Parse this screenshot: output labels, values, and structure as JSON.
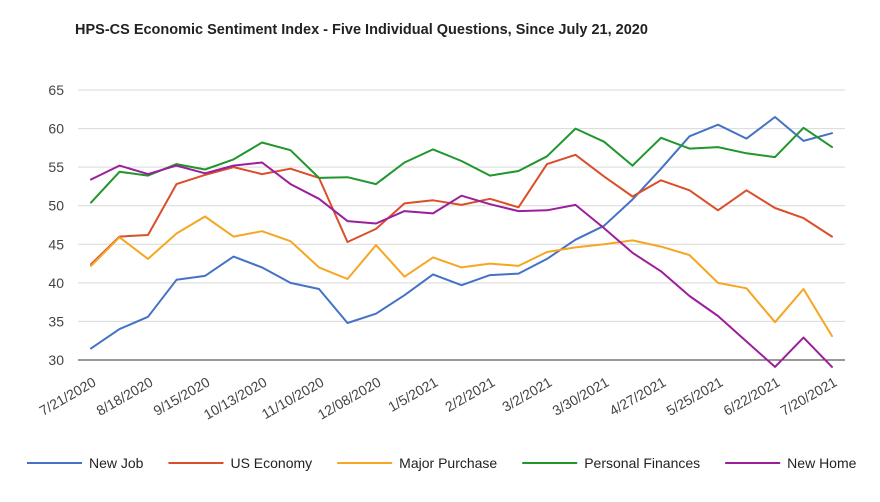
{
  "chart_data": {
    "type": "line",
    "title": "HPS-CS Economic Sentiment Index - Five Individual Questions, Since July 21, 2020",
    "xlabel": "",
    "ylabel": "",
    "ylim": [
      30,
      65
    ],
    "yticks": [
      "30",
      "35",
      "40",
      "45",
      "50",
      "55",
      "60",
      "65"
    ],
    "grid": true,
    "legend": "bottom",
    "categories": [
      "7/21/2020",
      "8/4/2020",
      "8/18/2020",
      "9/1/2020",
      "9/15/2020",
      "9/29/2020",
      "10/13/2020",
      "10/27/2020",
      "11/10/2020",
      "11/24/2020",
      "12/08/2020",
      "12/22/2020",
      "1/5/2021",
      "1/19/2021",
      "2/2/2021",
      "2/16/2021",
      "3/2/2021",
      "3/16/2021",
      "3/30/2021",
      "4/13/2021",
      "4/27/2021",
      "5/11/2021",
      "5/25/2021",
      "6/8/2021",
      "6/22/2021",
      "7/6/2021",
      "7/20/2021"
    ],
    "x_tick_labels": [
      "7/21/2020",
      "8/18/2020",
      "9/15/2020",
      "10/13/2020",
      "11/10/2020",
      "12/08/2020",
      "1/5/2021",
      "2/2/2021",
      "3/2/2021",
      "3/30/2021",
      "4/27/2021",
      "5/25/2021",
      "6/22/2021",
      "7/20/2021"
    ],
    "series": [
      {
        "name": "New Job",
        "color": "#4472C4",
        "values": [
          31.5,
          34.0,
          35.6,
          40.4,
          40.9,
          43.4,
          42.0,
          40.0,
          39.2,
          34.8,
          36.0,
          38.4,
          41.1,
          39.7,
          41.0,
          41.2,
          43.1,
          45.6,
          47.4,
          50.8,
          54.8,
          59.0,
          60.5,
          58.7,
          61.5,
          58.4,
          59.4
        ]
      },
      {
        "name": "US Economy",
        "color": "#DB4E2A",
        "values": [
          42.4,
          46.0,
          46.2,
          52.8,
          54.0,
          55.0,
          54.1,
          54.8,
          53.6,
          45.3,
          47.0,
          50.3,
          50.7,
          50.1,
          50.9,
          49.8,
          55.4,
          56.6,
          53.8,
          51.2,
          53.3,
          52.0,
          49.4,
          52.0,
          49.7,
          48.4,
          46.0
        ]
      },
      {
        "name": "Major Purchase",
        "color": "#F5A623",
        "values": [
          42.2,
          45.9,
          43.1,
          46.4,
          48.6,
          46.0,
          46.7,
          45.4,
          42.0,
          40.5,
          44.9,
          40.8,
          43.3,
          42.0,
          42.5,
          42.2,
          44.0,
          44.6,
          45.0,
          45.5,
          44.7,
          43.6,
          40.0,
          39.3,
          34.9,
          39.2,
          33.1
        ]
      },
      {
        "name": "Personal Finances",
        "color": "#21962D",
        "values": [
          50.4,
          54.4,
          53.9,
          55.4,
          54.7,
          56.0,
          58.2,
          57.2,
          53.6,
          53.7,
          52.8,
          55.6,
          57.3,
          55.8,
          53.9,
          54.5,
          56.4,
          60.0,
          58.3,
          55.2,
          58.8,
          57.4,
          57.6,
          56.8,
          56.3,
          60.1,
          57.6
        ]
      },
      {
        "name": "New Home",
        "color": "#9B1F9B",
        "values": [
          53.4,
          55.2,
          54.1,
          55.2,
          54.2,
          55.2,
          55.6,
          52.8,
          50.9,
          48.0,
          47.7,
          49.3,
          49.0,
          51.3,
          50.2,
          49.3,
          49.4,
          50.1,
          47.1,
          43.9,
          41.5,
          38.3,
          35.7,
          32.4,
          29.1,
          32.9,
          29.1
        ]
      }
    ]
  }
}
